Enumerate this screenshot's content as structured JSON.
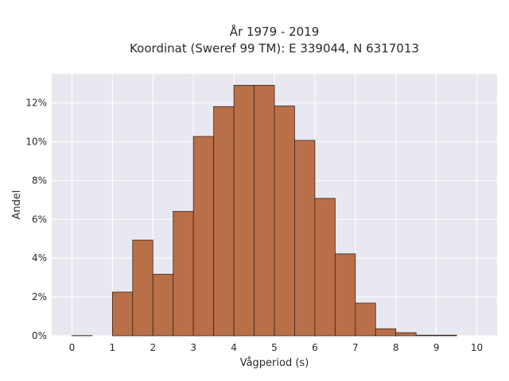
{
  "chart_data": {
    "type": "bar",
    "title_lines": [
      "År 1979 - 2019",
      "Koordinat (Sweref 99 TM): E 339044, N 6317013"
    ],
    "xlabel": "Vågperiod (s)",
    "ylabel": "Andel",
    "bin_width": 0.5,
    "bins_start": [
      0,
      0.5,
      1,
      1.5,
      2,
      2.5,
      3,
      3.5,
      4,
      4.5,
      5,
      5.5,
      6,
      6.5,
      7,
      7.5,
      8,
      8.5,
      9,
      9.5
    ],
    "values": [
      0.01,
      0,
      2.25,
      4.93,
      3.17,
      6.41,
      10.27,
      11.81,
      12.91,
      12.91,
      11.84,
      10.07,
      7.08,
      4.22,
      1.68,
      0.36,
      0.16,
      0.03,
      0.03,
      0
    ],
    "xlim": [
      -0.5,
      10.5
    ],
    "ylim": [
      0,
      13.5
    ],
    "xticks": [
      0,
      1,
      2,
      3,
      4,
      5,
      6,
      7,
      8,
      9,
      10
    ],
    "xtick_labels": [
      "0",
      "1",
      "2",
      "3",
      "4",
      "5",
      "6",
      "7",
      "8",
      "9",
      "10"
    ],
    "yticks": [
      0,
      2,
      4,
      6,
      8,
      10,
      12
    ],
    "ytick_labels": [
      "0%",
      "2%",
      "4%",
      "6%",
      "8%",
      "10%",
      "12%"
    ],
    "grid": true,
    "colors": {
      "bar_fill": "#b96f48",
      "bar_edge": "#3b2418",
      "plot_background": "#e8e8f0",
      "grid": "#ffffff"
    }
  }
}
